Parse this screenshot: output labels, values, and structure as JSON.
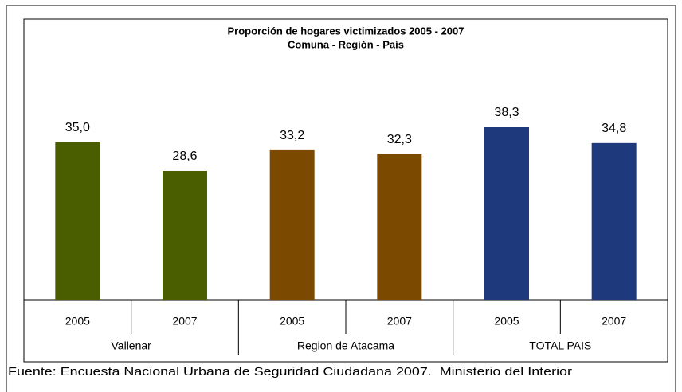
{
  "chart_data": {
    "type": "bar",
    "title": "Proporción de hogares victimizados 2005 - 2007",
    "subtitle": "Comuna - Región - País",
    "source": "Fuente: Encuesta Nacional Urbana de Seguridad Ciudadana 2007.  Ministerio del Interior",
    "groups": [
      {
        "name": "Vallenar",
        "color": "#4a5e00",
        "categories": [
          "2005",
          "2007"
        ],
        "values": [
          35.0,
          28.6
        ],
        "value_labels": [
          "35,0",
          "28,6"
        ]
      },
      {
        "name": "Region de Atacama",
        "color": "#7b4a00",
        "categories": [
          "2005",
          "2007"
        ],
        "values": [
          33.2,
          32.3
        ],
        "value_labels": [
          "33,2",
          "32,3"
        ]
      },
      {
        "name": "TOTAL PAIS",
        "color": "#1f3a7c",
        "categories": [
          "2005",
          "2007"
        ],
        "values": [
          38.3,
          34.8
        ],
        "value_labels": [
          "38,3",
          "34,8"
        ]
      }
    ]
  }
}
